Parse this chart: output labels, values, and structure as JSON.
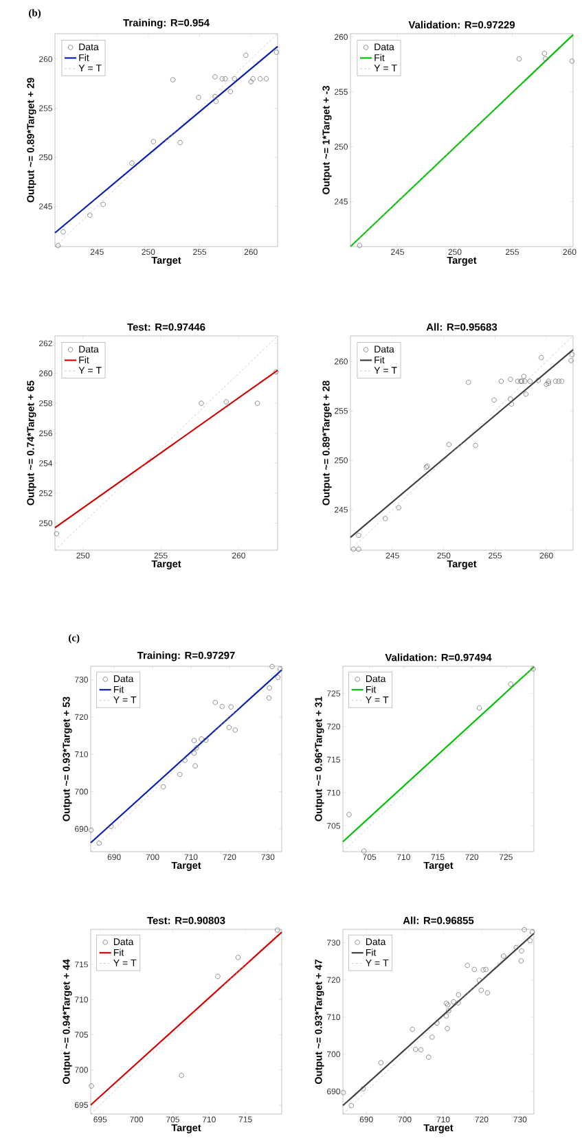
{
  "chart_data": [
    {
      "type": "scatter",
      "title": "Training: R=0.954",
      "xlabel": "Target",
      "ylabel": "Output ~= 0.89*Target + 29",
      "annotations": [
        "(b)"
      ],
      "xlim": [
        240.9,
        262.6
      ],
      "ylim": [
        240.9,
        262.6
      ],
      "xticks": [
        245,
        250,
        255,
        260
      ],
      "yticks": [
        245,
        250,
        255,
        260
      ],
      "legend": "top left",
      "series": [
        {
          "name": "Data",
          "marker": "circle",
          "color": "#606060",
          "x": [
            241.2,
            241.7,
            244.3,
            245.6,
            248.4,
            250.5,
            253.1,
            252.4,
            254.9,
            256.5,
            256.6,
            256.5,
            257.2,
            257.5,
            258.0,
            258.4,
            259.5,
            260.0,
            260.2,
            260.9,
            261.5,
            262.5
          ],
          "values": [
            241.0,
            242.4,
            244.1,
            245.2,
            249.4,
            251.6,
            251.5,
            257.9,
            256.1,
            256.2,
            255.7,
            258.2,
            258.0,
            258.0,
            256.7,
            258.0,
            260.4,
            257.7,
            258.0,
            258.0,
            258.0,
            260.7
          ]
        },
        {
          "name": "Fit",
          "type": "line",
          "color": "#0a1fb0",
          "x": [
            240.9,
            262.6
          ],
          "values": [
            242.3,
            261.3
          ]
        },
        {
          "name": "Y = T",
          "type": "line",
          "line_style": "dashed",
          "color": "#b4b4b4",
          "x": [
            240.9,
            262.6
          ],
          "values": [
            240.9,
            262.6
          ]
        }
      ]
    },
    {
      "type": "scatter",
      "title": "Validation: R=0.97229",
      "xlabel": "Target",
      "ylabel": "Output ~= 1*Target + -3",
      "xlim": [
        240.9,
        260.3
      ],
      "ylim": [
        240.9,
        260.3
      ],
      "xticks": [
        245,
        250,
        255,
        260
      ],
      "yticks": [
        245,
        250,
        255,
        260
      ],
      "legend": "top left",
      "series": [
        {
          "name": "Data",
          "marker": "circle",
          "color": "#606060",
          "x": [
            241.7,
            255.6,
            257.8,
            257.9,
            260.2
          ],
          "values": [
            241.0,
            258.0,
            258.5,
            258.0,
            257.8
          ]
        },
        {
          "name": "Fit",
          "type": "line",
          "color": "#00c000",
          "x": [
            240.9,
            260.3
          ],
          "values": [
            240.9,
            260.2
          ]
        },
        {
          "name": "Y = T",
          "type": "line",
          "line_style": "dashed",
          "color": "#b4b4b4",
          "x": [
            240.9,
            260.3
          ],
          "values": [
            240.9,
            260.3
          ]
        }
      ]
    },
    {
      "type": "scatter",
      "title": "Test: R=0.97446",
      "xlabel": "Target",
      "ylabel": "Output ~= 0.74*Target + 65",
      "xlim": [
        248.2,
        262.5
      ],
      "ylim": [
        248.2,
        262.5
      ],
      "xticks": [
        250,
        255,
        260
      ],
      "yticks": [
        250,
        252,
        254,
        256,
        258,
        260,
        262
      ],
      "legend": "top left",
      "series": [
        {
          "name": "Data",
          "marker": "circle",
          "color": "#606060",
          "x": [
            248.3,
            257.6,
            259.2,
            261.2,
            262.4
          ],
          "values": [
            249.3,
            258.0,
            258.1,
            258.0,
            260.1
          ]
        },
        {
          "name": "Fit",
          "type": "line",
          "color": "#d40000",
          "x": [
            248.2,
            262.5
          ],
          "values": [
            249.7,
            260.2
          ]
        },
        {
          "name": "Y = T",
          "type": "line",
          "line_style": "dashed",
          "color": "#b4b4b4",
          "x": [
            248.2,
            262.5
          ],
          "values": [
            248.2,
            262.5
          ]
        }
      ]
    },
    {
      "type": "scatter",
      "title": "All: R=0.95683",
      "xlabel": "Target",
      "ylabel": "Output ~= 0.89*Target + 28",
      "xlim": [
        240.9,
        262.6
      ],
      "ylim": [
        240.9,
        262.6
      ],
      "xticks": [
        245,
        250,
        255,
        260
      ],
      "yticks": [
        245,
        250,
        255,
        260
      ],
      "legend": "top left",
      "series": [
        {
          "name": "Data",
          "marker": "circle",
          "color": "#606060",
          "x": [
            241.2,
            241.7,
            244.3,
            245.6,
            248.4,
            250.5,
            253.1,
            252.4,
            254.9,
            256.5,
            256.6,
            256.5,
            257.2,
            257.5,
            258.0,
            258.4,
            259.5,
            260.0,
            260.2,
            260.9,
            261.5,
            262.5,
            241.7,
            255.6,
            257.8,
            257.9,
            260.2,
            248.3,
            257.6,
            259.2,
            261.2,
            262.4
          ],
          "values": [
            241.0,
            242.4,
            244.1,
            245.2,
            249.4,
            251.6,
            251.5,
            257.9,
            256.1,
            256.2,
            255.7,
            258.2,
            258.0,
            258.0,
            256.7,
            258.0,
            260.4,
            257.7,
            258.0,
            258.0,
            258.0,
            260.7,
            241.0,
            258.0,
            258.5,
            258.0,
            257.8,
            249.3,
            258.0,
            258.1,
            258.0,
            260.1
          ]
        },
        {
          "name": "Fit",
          "type": "line",
          "color": "#404040",
          "x": [
            240.9,
            262.6
          ],
          "values": [
            242.2,
            261.2
          ]
        },
        {
          "name": "Y = T",
          "type": "line",
          "line_style": "dashed",
          "color": "#b4b4b4",
          "x": [
            240.9,
            262.6
          ],
          "values": [
            240.9,
            262.6
          ]
        }
      ]
    },
    {
      "type": "scatter",
      "title": "Training: R=0.97297",
      "xlabel": "Target",
      "ylabel": "Output ~= 0.93*Target + 53",
      "annotations": [
        "(c)"
      ],
      "xlim": [
        683.9,
        733.6
      ],
      "ylim": [
        683.9,
        733.6
      ],
      "xticks": [
        690,
        700,
        710,
        720,
        730
      ],
      "yticks": [
        690,
        700,
        710,
        720,
        730
      ],
      "legend": "top left",
      "series": [
        {
          "name": "Data",
          "marker": "circle",
          "color": "#606060",
          "x": [
            684.0,
            686.1,
            689.2,
            702.8,
            707.1,
            708.4,
            710.8,
            710.8,
            711.4,
            711.1,
            712.7,
            713.9,
            716.3,
            718.1,
            720.4,
            719.9,
            721.5,
            730.3,
            730.4,
            731.1,
            732.6,
            733.2
          ],
          "values": [
            689.7,
            686.2,
            690.7,
            701.3,
            704.6,
            708.4,
            710.3,
            713.7,
            711.7,
            706.9,
            714.1,
            713.8,
            723.9,
            722.8,
            722.7,
            717.2,
            716.5,
            725.1,
            727.8,
            733.5,
            730.6,
            732.9
          ]
        },
        {
          "name": "Fit",
          "type": "line",
          "color": "#0a1fb0",
          "x": [
            683.9,
            733.6
          ],
          "values": [
            686.3,
            732.6
          ]
        },
        {
          "name": "Y = T",
          "type": "line",
          "line_style": "dashed",
          "color": "#b4b4b4",
          "x": [
            683.9,
            733.6
          ],
          "values": [
            683.9,
            733.6
          ]
        }
      ]
    },
    {
      "type": "scatter",
      "title": "Validation: R=0.97494",
      "xlabel": "Target",
      "ylabel": "Output ~= 0.96*Target + 31",
      "xlim": [
        701.1,
        729.1
      ],
      "ylim": [
        701.1,
        729.1
      ],
      "xticks": [
        705,
        710,
        715,
        720,
        725
      ],
      "yticks": [
        705,
        710,
        715,
        720,
        725
      ],
      "legend": "top left",
      "series": [
        {
          "name": "Data",
          "marker": "circle",
          "color": "#606060",
          "x": [
            702.0,
            704.2,
            721.1,
            725.7,
            729.0
          ],
          "values": [
            706.7,
            701.2,
            722.8,
            726.4,
            728.7
          ]
        },
        {
          "name": "Fit",
          "type": "line",
          "color": "#00c000",
          "x": [
            701.1,
            729.1
          ],
          "values": [
            702.6,
            729.0
          ]
        },
        {
          "name": "Y = T",
          "type": "line",
          "line_style": "dashed",
          "color": "#b4b4b4",
          "x": [
            701.1,
            729.1
          ],
          "values": [
            701.1,
            729.1
          ]
        }
      ]
    },
    {
      "type": "scatter",
      "title": "Test: R=0.90803",
      "xlabel": "Target",
      "ylabel": "Output ~= 0.94*Target + 44",
      "xlim": [
        693.7,
        720.0
      ],
      "ylim": [
        693.7,
        720.0
      ],
      "xticks": [
        695,
        700,
        705,
        710,
        715
      ],
      "yticks": [
        695,
        700,
        705,
        710,
        715
      ],
      "legend": "top left",
      "series": [
        {
          "name": "Data",
          "marker": "circle",
          "color": "#606060",
          "x": [
            693.8,
            706.2,
            711.2,
            714.0,
            719.4
          ],
          "values": [
            697.7,
            699.2,
            713.3,
            716.0,
            719.9
          ]
        },
        {
          "name": "Fit",
          "type": "line",
          "color": "#d40000",
          "x": [
            693.7,
            720.0
          ],
          "values": [
            695.0,
            719.6
          ]
        },
        {
          "name": "Y = T",
          "type": "line",
          "line_style": "dashed",
          "color": "#b4b4b4",
          "x": [
            693.7,
            720.0
          ],
          "values": [
            693.7,
            720.0
          ]
        }
      ]
    },
    {
      "type": "scatter",
      "title": "All: R=0.96855",
      "xlabel": "Target",
      "ylabel": "Output ~= 0.93*Target + 47",
      "xlim": [
        683.9,
        733.6
      ],
      "ylim": [
        683.9,
        733.6
      ],
      "xticks": [
        690,
        700,
        710,
        720,
        730
      ],
      "yticks": [
        690,
        700,
        710,
        720,
        730
      ],
      "legend": "top left",
      "series": [
        {
          "name": "Data",
          "marker": "circle",
          "color": "#606060",
          "x": [
            684.0,
            686.1,
            689.2,
            702.8,
            707.1,
            708.4,
            710.8,
            710.8,
            711.4,
            711.1,
            712.7,
            713.9,
            716.3,
            718.1,
            720.4,
            719.9,
            721.5,
            730.3,
            730.4,
            731.1,
            732.6,
            733.2,
            702.0,
            704.2,
            721.1,
            725.7,
            729.0,
            693.8,
            706.2,
            711.2,
            714.0,
            719.4
          ],
          "values": [
            689.7,
            686.2,
            690.7,
            701.3,
            704.6,
            708.4,
            710.3,
            713.7,
            711.7,
            706.9,
            714.1,
            713.8,
            723.9,
            722.8,
            722.7,
            717.2,
            716.5,
            725.1,
            727.8,
            733.5,
            730.6,
            732.9,
            706.7,
            701.2,
            722.8,
            726.4,
            728.7,
            697.7,
            699.2,
            713.3,
            716.0,
            719.9
          ]
        },
        {
          "name": "Fit",
          "type": "line",
          "color": "#404040",
          "x": [
            683.9,
            733.6
          ],
          "values": [
            686.2,
            732.5
          ]
        },
        {
          "name": "Y = T",
          "type": "line",
          "line_style": "dashed",
          "color": "#b4b4b4",
          "x": [
            683.9,
            733.6
          ],
          "values": [
            683.9,
            733.6
          ]
        }
      ]
    }
  ]
}
